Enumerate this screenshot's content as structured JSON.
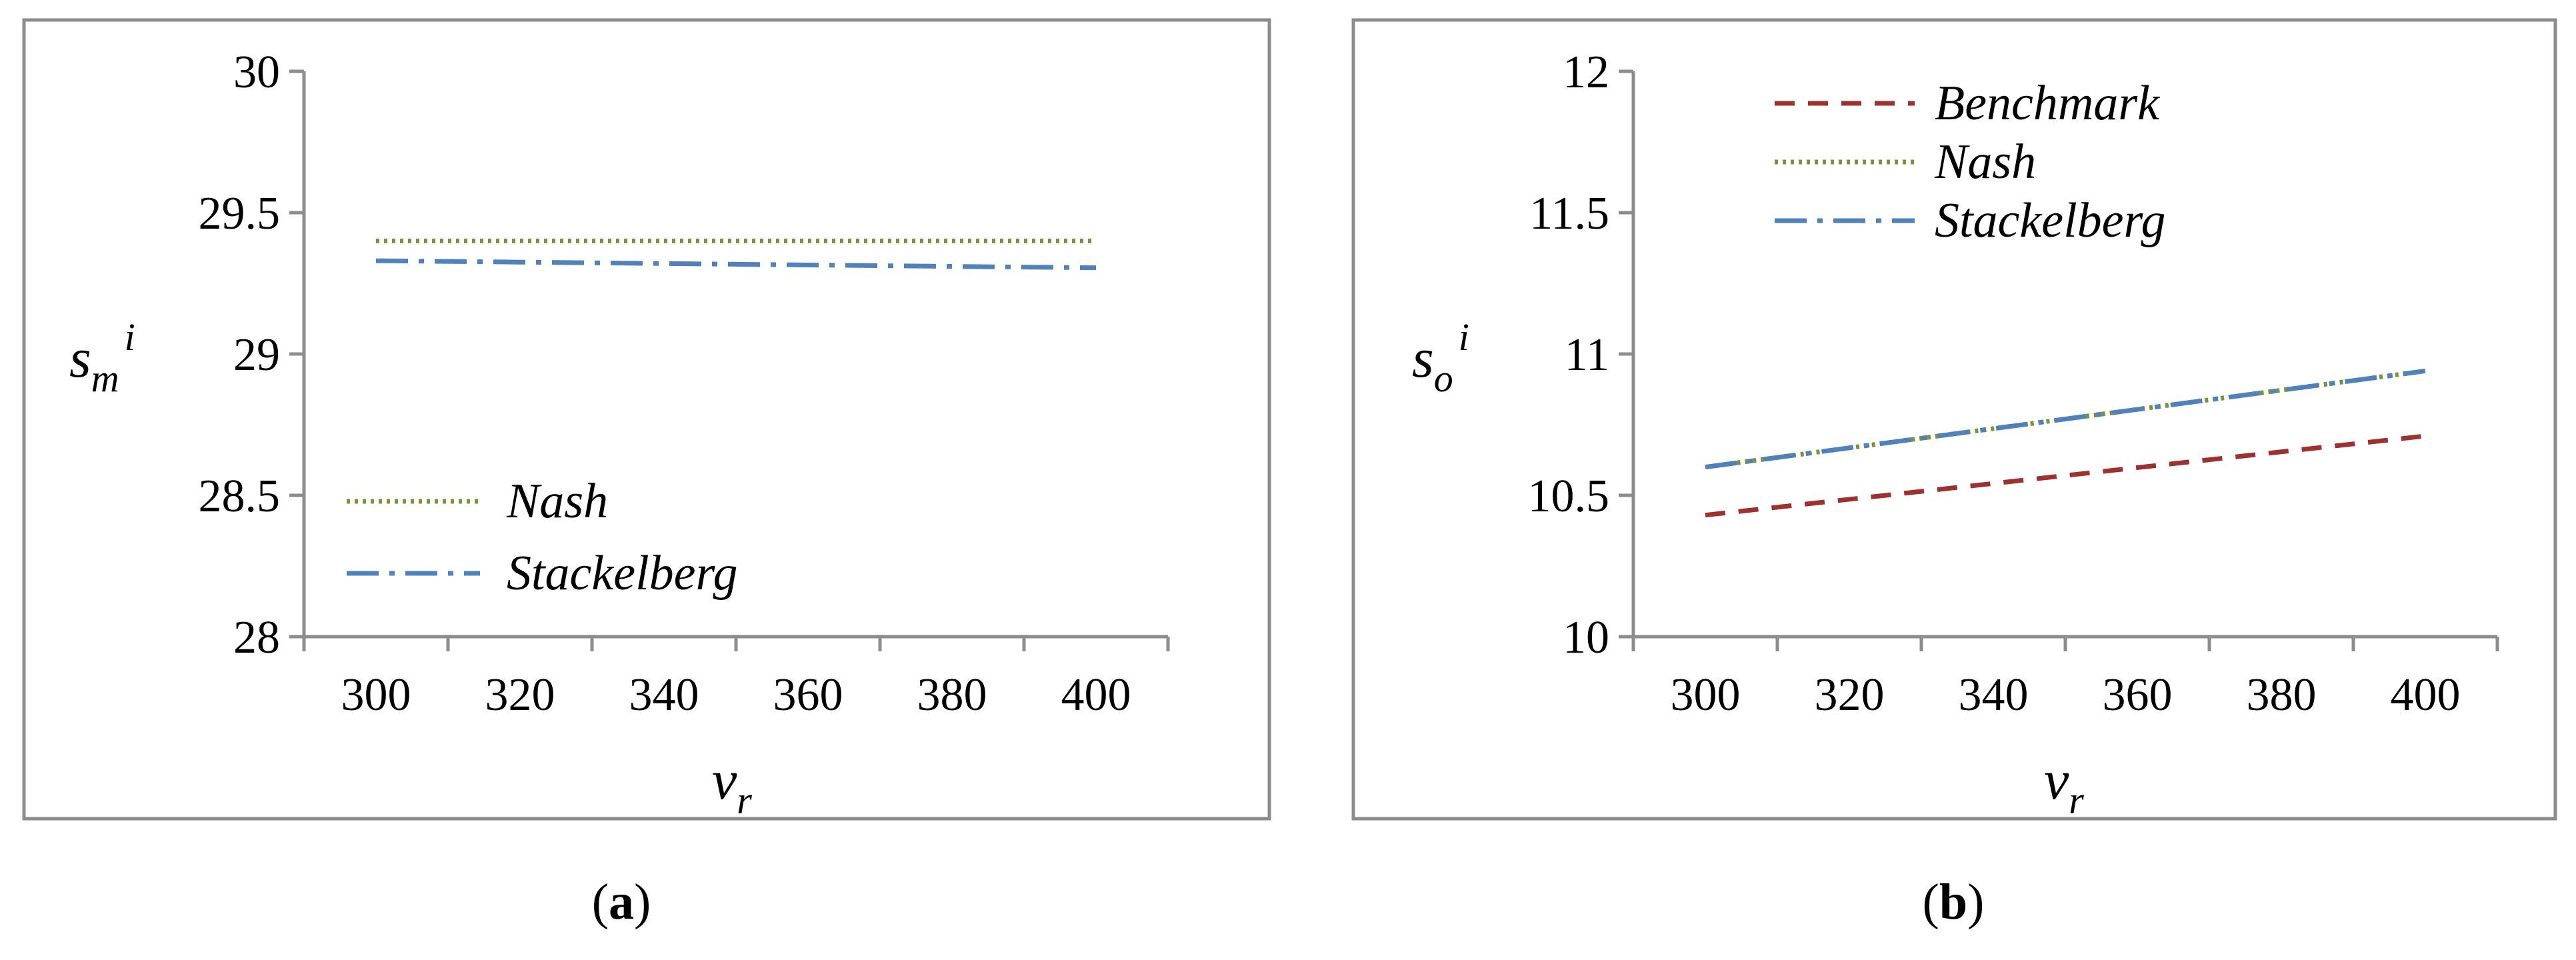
{
  "chart_data": [
    {
      "type": "line",
      "panel": "a",
      "caption": {
        "open": "(",
        "letter": "a",
        "close": ")"
      },
      "ylabel": {
        "base": "s",
        "sub": "m",
        "sup": "i"
      },
      "xlabel": {
        "base": "v",
        "sub": "r"
      },
      "ylim": [
        28,
        30
      ],
      "yticks": [
        "28",
        "28.5",
        "29",
        "29.5",
        "30"
      ],
      "xlim": [
        290,
        410
      ],
      "xticks": [
        "300",
        "320",
        "340",
        "360",
        "380",
        "400"
      ],
      "grid": false,
      "legend_position": "lower-left",
      "series": [
        {
          "name": "Nash",
          "color": "#77933C",
          "style": "dotted",
          "x": [
            300,
            400
          ],
          "y": [
            29.4,
            29.4
          ]
        },
        {
          "name": "Stackelberg",
          "color": "#4F81BD",
          "style": "dash-dot",
          "x": [
            300,
            320,
            340,
            360,
            380,
            400
          ],
          "y": [
            29.33,
            29.325,
            29.32,
            29.315,
            29.31,
            29.305
          ]
        }
      ]
    },
    {
      "type": "line",
      "panel": "b",
      "caption": {
        "open": "(",
        "letter": "b",
        "close": ")"
      },
      "ylabel": {
        "base": "s",
        "sub": "o",
        "sup": "i"
      },
      "xlabel": {
        "base": "v",
        "sub": "r"
      },
      "ylim": [
        10,
        12
      ],
      "yticks": [
        "10",
        "10.5",
        "11",
        "11.5",
        "12"
      ],
      "xlim": [
        290,
        410
      ],
      "xticks": [
        "300",
        "320",
        "340",
        "360",
        "380",
        "400"
      ],
      "grid": false,
      "legend_position": "top-left",
      "series": [
        {
          "name": "Benchmark",
          "color": "#A0302D",
          "style": "dashed",
          "x": [
            300,
            400
          ],
          "y": [
            10.43,
            10.71
          ]
        },
        {
          "name": "Nash",
          "color": "#77933C",
          "style": "dotted",
          "x": [
            300,
            400
          ],
          "y": [
            10.6,
            10.94
          ]
        },
        {
          "name": "Stackelberg",
          "color": "#4F81BD",
          "style": "dash-dot",
          "x": [
            300,
            400
          ],
          "y": [
            10.6,
            10.94
          ]
        }
      ]
    }
  ]
}
